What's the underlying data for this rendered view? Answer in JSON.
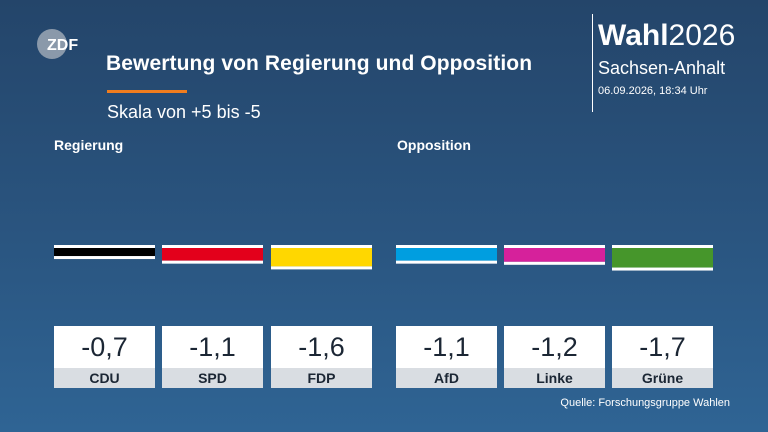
{
  "logo": {
    "text": "ZDF"
  },
  "title": "Bewertung von Regierung und Opposition",
  "subtitle": "Skala von +5 bis -5",
  "brand": {
    "wahl_bold": "Wahl",
    "wahl_year": "2026",
    "region": "Sachsen-Anhalt",
    "datetime": "06.09.2026, 18:34 Uhr"
  },
  "groups": {
    "government": "Regierung",
    "opposition": "Opposition"
  },
  "source": "Quelle: Forschungsgruppe Wahlen",
  "colors": {
    "background": "#2a5580",
    "accent": "#f07d1e",
    "CDU": "#000000",
    "SPD": "#e3001b",
    "FDP": "#ffd700",
    "AfD": "#009ee0",
    "Linke": "#d6219b",
    "Grüne": "#46962b"
  },
  "chart_data": {
    "type": "bar",
    "title": "Bewertung von Regierung und Opposition",
    "subtitle": "Skala von +5 bis -5",
    "categories": [
      "CDU",
      "SPD",
      "FDP",
      "AfD",
      "Linke",
      "Grüne"
    ],
    "values": [
      -0.7,
      -1.1,
      -1.6,
      -1.1,
      -1.2,
      -1.7
    ],
    "value_labels": [
      "-0,7",
      "-1,1",
      "-1,6",
      "-1,1",
      "-1,2",
      "-1,7"
    ],
    "groups": [
      "Regierung",
      "Regierung",
      "Regierung",
      "Opposition",
      "Opposition",
      "Opposition"
    ],
    "ylim": [
      -5,
      5
    ],
    "grid": false
  }
}
